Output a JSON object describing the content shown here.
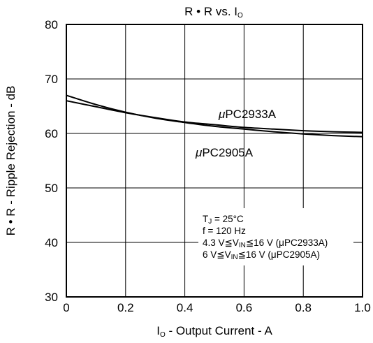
{
  "chart_data": {
    "type": "line",
    "title": "R • R vs. Io",
    "title_main": "R • R vs. I",
    "title_sub": "O",
    "xlabel": "Io - Output Current - A",
    "xlabel_pre": "I",
    "xlabel_sub": "O",
    "xlabel_post": " - Output Current - A",
    "ylabel": "R • R - Ripple Rejection - dB",
    "xlim": [
      0,
      1.0
    ],
    "ylim": [
      30,
      80
    ],
    "x_ticks": [
      "0",
      "0.2",
      "0.4",
      "0.6",
      "0.8",
      "1.0"
    ],
    "y_ticks": [
      "30",
      "40",
      "50",
      "60",
      "70",
      "80"
    ],
    "grid": true,
    "series": [
      {
        "name": "μPC2933A",
        "x": [
          0,
          0.1,
          0.2,
          0.3,
          0.4,
          0.5,
          0.6,
          0.7,
          0.8,
          0.9,
          1.0
        ],
        "values": [
          66.0,
          64.9,
          63.8,
          62.9,
          62.1,
          61.6,
          61.1,
          60.8,
          60.5,
          60.3,
          60.2
        ]
      },
      {
        "name": "μPC2905A",
        "x": [
          0,
          0.1,
          0.2,
          0.3,
          0.4,
          0.5,
          0.6,
          0.7,
          0.8,
          0.9,
          1.0
        ],
        "values": [
          67.0,
          65.3,
          63.9,
          62.8,
          62.0,
          61.3,
          60.8,
          60.3,
          59.9,
          59.6,
          59.4
        ]
      }
    ],
    "annotations": {
      "series_label_1_mu": "μ",
      "series_label_1_text": "PC2933A",
      "series_label_2_mu": "μ",
      "series_label_2_text": "PC2905A",
      "conditions": [
        {
          "pre": "T",
          "sub": "J",
          "post": " = 25°C"
        },
        {
          "pre": "f = 120 Hz",
          "sub": "",
          "post": ""
        },
        {
          "pre": "4.3 V≦V",
          "sub": "IN",
          "post": "≦16 V (μPC2933A)"
        },
        {
          "pre": "6 V≦V",
          "sub": "IN",
          "post": "≦16 V (μPC2905A)"
        }
      ]
    }
  }
}
